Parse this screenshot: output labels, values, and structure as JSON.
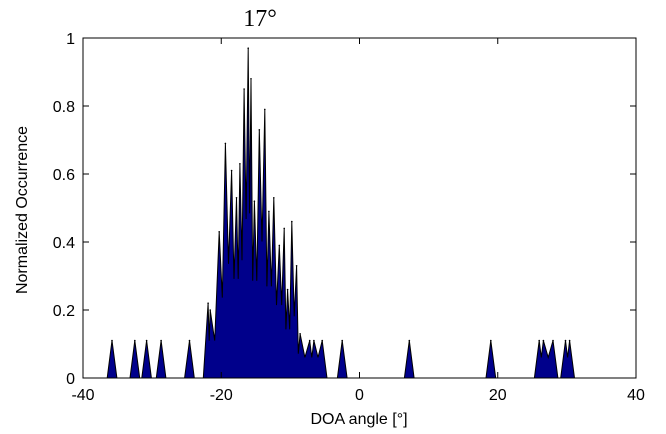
{
  "chart_data": {
    "type": "area",
    "title": "17°",
    "xlabel": "DOA angle [°]",
    "ylabel": "Normalized Occurrence",
    "xlim": [
      -40,
      40
    ],
    "ylim": [
      0,
      1
    ],
    "xticks": [
      -40,
      -20,
      0,
      20,
      40
    ],
    "yticks": [
      0,
      0.2,
      0.4,
      0.6,
      0.8,
      1
    ],
    "xtick_labels": [
      "-40",
      "-20",
      "0",
      "20",
      "40"
    ],
    "ytick_labels": [
      "0",
      "0.2",
      "0.4",
      "0.6",
      "0.8",
      "1"
    ],
    "fill_color": "#00008b",
    "grid": false,
    "x": [
      -35.8,
      -32.5,
      -30.8,
      -28.7,
      -24.6,
      -21.9,
      -21.6,
      -20.3,
      -19.4,
      -18.5,
      -17.8,
      -17.3,
      -16.7,
      -16.1,
      -15.7,
      -15.2,
      -14.5,
      -13.7,
      -13.1,
      -12.4,
      -11.6,
      -10.9,
      -10.4,
      -9.8,
      -9.1,
      -8.6,
      -7.2,
      -6.6,
      -5.4,
      -2.5,
      7.2,
      19.0,
      26.0,
      26.6,
      28.0,
      29.8,
      30.4
    ],
    "values": [
      0.11,
      0.11,
      0.11,
      0.11,
      0.11,
      0.22,
      0.2,
      0.43,
      0.69,
      0.61,
      0.53,
      0.63,
      0.85,
      0.97,
      0.88,
      0.52,
      0.73,
      0.79,
      0.49,
      0.53,
      0.39,
      0.44,
      0.26,
      0.46,
      0.33,
      0.13,
      0.11,
      0.11,
      0.11,
      0.11,
      0.11,
      0.11,
      0.11,
      0.11,
      0.11,
      0.11,
      0.11
    ]
  }
}
